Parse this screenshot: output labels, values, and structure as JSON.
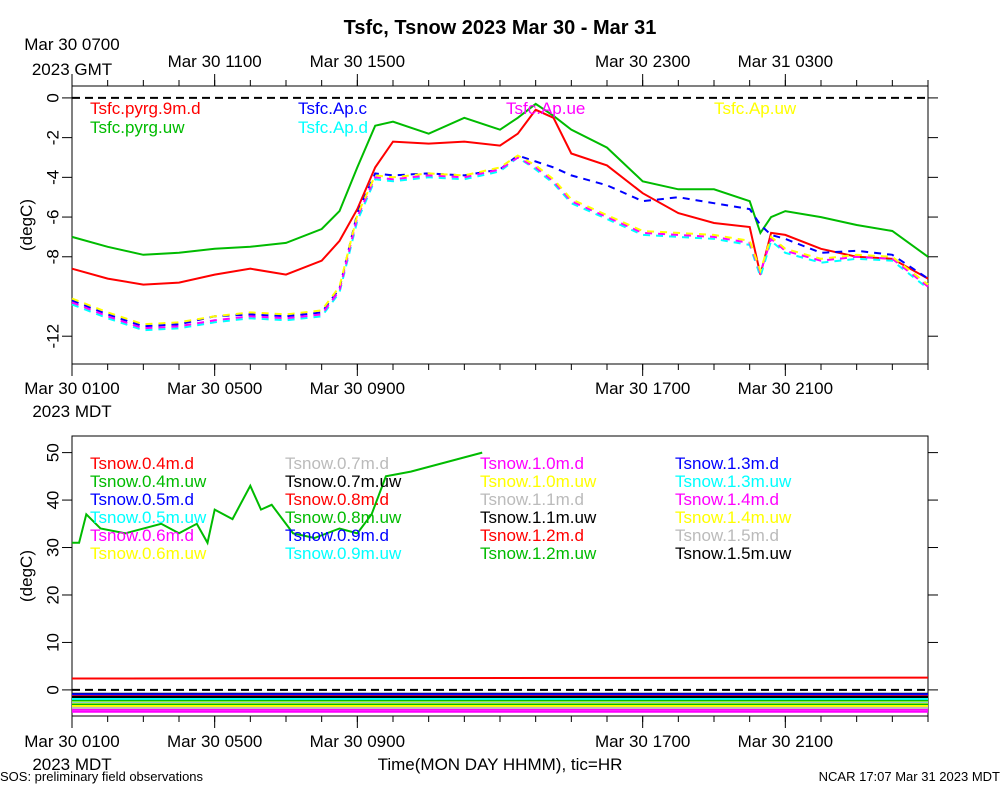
{
  "page": {
    "title": "Tsfc, Tsnow 2023 Mar 30 - Mar 31",
    "footer_left": "SOS: preliminary field observations",
    "footer_right": "NCAR 17:07 Mar 31 2023 MDT",
    "xlabel": "Time(MON DAY HHMM), tic=HR"
  },
  "top_axis": {
    "ticks": [
      {
        "label": "Mar 30 0700",
        "hour": 0
      },
      {
        "label": "Mar 30 1100",
        "hour": 4
      },
      {
        "label": "Mar 30 1500",
        "hour": 8
      },
      {
        "label": "Mar 30 2300",
        "hour": 16
      },
      {
        "label": "Mar 31 0300",
        "hour": 20
      }
    ],
    "first_tick_suffix": "2023 GMT"
  },
  "bottom_axis": {
    "ticks": [
      {
        "label": "Mar 30 0100",
        "hour": 0
      },
      {
        "label": "Mar 30 0500",
        "hour": 4
      },
      {
        "label": "Mar 30 0900",
        "hour": 8
      },
      {
        "label": "Mar 30 1700",
        "hour": 16
      },
      {
        "label": "Mar 30 2100",
        "hour": 20
      }
    ],
    "first_tick_suffix": "2023 MDT"
  },
  "chart_data": [
    {
      "type": "line",
      "title": "Tsfc, Tsnow 2023 Mar 30 - Mar 31",
      "ylabel": "(degC)",
      "xlim": [
        0,
        24
      ],
      "ylim": [
        -13.4,
        0.6
      ],
      "yticks": [
        0,
        -2,
        -4,
        -6,
        -8,
        -12
      ],
      "reference_line": {
        "y": 0,
        "style": "dashed",
        "color": "#000000"
      },
      "x_hours_mdt": [
        0,
        1,
        2,
        3,
        4,
        5,
        6,
        7,
        7.5,
        8,
        8.5,
        9,
        10,
        11,
        12,
        12.5,
        13,
        13.5,
        14,
        15,
        16,
        17,
        18,
        19,
        19.3,
        19.6,
        20,
        21,
        22,
        23,
        24
      ],
      "series": [
        {
          "name": "Tsfc.pyrg.9m.d",
          "color": "#ff0000",
          "style": "solid",
          "values": [
            -8.6,
            -9.1,
            -9.4,
            -9.3,
            -8.9,
            -8.6,
            -8.9,
            -8.2,
            -7.2,
            -5.6,
            -3.5,
            -2.2,
            -2.3,
            -2.2,
            -2.4,
            -1.8,
            -0.6,
            -1.0,
            -2.8,
            -3.4,
            -4.8,
            -5.8,
            -6.3,
            -6.5,
            -8.9,
            -6.8,
            -6.9,
            -7.6,
            -8.0,
            -8.1,
            -9.1
          ]
        },
        {
          "name": "Tsfc.pyrg.uw",
          "color": "#00bb00",
          "style": "solid",
          "values": [
            -7.0,
            -7.5,
            -7.9,
            -7.8,
            -7.6,
            -7.5,
            -7.3,
            -6.6,
            -5.7,
            -3.5,
            -1.4,
            -1.2,
            -1.8,
            -1.0,
            -1.6,
            -1.0,
            -0.3,
            -0.9,
            -1.6,
            -2.5,
            -4.2,
            -4.6,
            -4.6,
            -5.2,
            -6.8,
            -6.0,
            -5.7,
            -6.0,
            -6.4,
            -6.7,
            -8.0
          ]
        },
        {
          "name": "Tsfc.Ap.c",
          "color": "#0000ff",
          "style": "dashed",
          "values": [
            -10.2,
            -10.9,
            -11.5,
            -11.4,
            -11.0,
            -10.9,
            -11.0,
            -10.8,
            -9.6,
            -5.8,
            -3.8,
            -3.9,
            -3.8,
            -3.9,
            -3.6,
            -2.9,
            -3.2,
            -3.5,
            -3.9,
            -4.4,
            -5.2,
            -5.0,
            -5.3,
            -5.6,
            -6.4,
            -6.9,
            -7.1,
            -7.8,
            -7.7,
            -7.9,
            -9.1
          ]
        },
        {
          "name": "Tsfc.Ap.d",
          "color": "#00ffff",
          "style": "dashed",
          "values": [
            -10.4,
            -11.1,
            -11.7,
            -11.6,
            -11.3,
            -11.1,
            -11.2,
            -11.0,
            -9.8,
            -6.2,
            -4.1,
            -4.2,
            -4.0,
            -4.1,
            -3.7,
            -3.0,
            -3.6,
            -4.3,
            -5.3,
            -6.1,
            -6.9,
            -7.0,
            -7.1,
            -7.4,
            -9.0,
            -7.2,
            -7.8,
            -8.3,
            -8.1,
            -8.2,
            -9.6
          ]
        },
        {
          "name": "Tsfc.Ap.ue",
          "color": "#ff00ff",
          "style": "dashed",
          "values": [
            -10.3,
            -11.0,
            -11.6,
            -11.5,
            -11.2,
            -11.0,
            -11.1,
            -10.9,
            -9.7,
            -6.0,
            -4.0,
            -4.1,
            -3.9,
            -4.0,
            -3.6,
            -3.0,
            -3.5,
            -4.2,
            -5.2,
            -6.0,
            -6.8,
            -6.9,
            -7.0,
            -7.3,
            -8.8,
            -7.1,
            -7.7,
            -8.2,
            -8.0,
            -8.1,
            -9.5
          ]
        },
        {
          "name": "Tsfc.Ap.uw",
          "color": "#ffff00",
          "style": "dashed",
          "values": [
            -10.1,
            -10.8,
            -11.4,
            -11.3,
            -11.0,
            -10.8,
            -10.9,
            -10.7,
            -9.5,
            -5.9,
            -3.9,
            -4.0,
            -3.8,
            -3.9,
            -3.5,
            -2.9,
            -3.4,
            -4.1,
            -5.1,
            -5.9,
            -6.7,
            -6.8,
            -6.9,
            -7.2,
            -8.7,
            -7.0,
            -7.6,
            -8.1,
            -7.9,
            -8.0,
            -9.4
          ]
        }
      ]
    },
    {
      "type": "line",
      "ylabel": "(degC)",
      "xlim": [
        0,
        24
      ],
      "ylim": [
        -5.5,
        53.5
      ],
      "yticks": [
        0,
        10,
        20,
        30,
        40,
        50
      ],
      "reference_line": {
        "y": 0,
        "style": "dashed",
        "color": "#000000"
      },
      "series": [
        {
          "name": "Tsnow.0.4m.d",
          "color": "#ff0000",
          "x": [
            0,
            24
          ],
          "values": [
            2.4,
            2.6
          ]
        },
        {
          "name": "Tsnow.0.4m.uw",
          "color": "#00bb00",
          "x": [
            0,
            0.2,
            0.4,
            0.8,
            1.5,
            2.5,
            3.0,
            3.5,
            3.8,
            4.0,
            4.5,
            5.0,
            5.3,
            5.6,
            6.2,
            6.8,
            7.5,
            8.0,
            8.4,
            8.8,
            9.5,
            10.5,
            11.0,
            11.5
          ],
          "values": [
            31,
            31,
            37,
            34,
            33,
            35,
            33,
            35,
            31,
            38,
            36,
            43,
            38,
            39,
            33,
            32,
            34,
            33,
            37,
            45,
            46,
            48,
            49,
            50
          ]
        },
        {
          "name": "Tsnow.0.5m.d",
          "color": "#0000ff",
          "x": [
            0,
            24
          ],
          "values": [
            -1.6,
            -1.6
          ]
        },
        {
          "name": "Tsnow.0.5m.uw",
          "color": "#00ffff",
          "x": [
            0,
            24
          ],
          "values": [
            -2.6,
            -2.6
          ]
        },
        {
          "name": "Tsnow.0.6m.d",
          "color": "#ff00ff",
          "x": [
            0,
            24
          ],
          "values": [
            -3.6,
            -3.6
          ]
        },
        {
          "name": "Tsnow.0.6m.uw",
          "color": "#ffff00",
          "x": [
            0,
            24
          ],
          "values": [
            -2.3,
            -2.3
          ]
        },
        {
          "name": "Tsnow.0.7m.d",
          "color": "#bbbbbb",
          "x": [
            0,
            24
          ],
          "values": [
            -2.8,
            -2.8
          ]
        },
        {
          "name": "Tsnow.0.7m.uw",
          "color": "#000000",
          "x": [
            0,
            24
          ],
          "values": [
            -1.2,
            -1.2
          ]
        },
        {
          "name": "Tsnow.0.8m.d",
          "color": "#ff0000",
          "x": [
            0,
            24
          ],
          "values": [
            -2.0,
            -2.0
          ]
        },
        {
          "name": "Tsnow.0.8m.uw",
          "color": "#00bb00",
          "x": [
            0,
            24
          ],
          "values": [
            -2.2,
            -2.2
          ]
        },
        {
          "name": "Tsnow.0.9m.d",
          "color": "#0000ff",
          "x": [
            0,
            24
          ],
          "values": [
            -1.4,
            -1.4
          ]
        },
        {
          "name": "Tsnow.0.9m.uw",
          "color": "#00ffff",
          "x": [
            0,
            24
          ],
          "values": [
            -1.9,
            -1.9
          ]
        },
        {
          "name": "Tsnow.1.0m.d",
          "color": "#ff00ff",
          "x": [
            0,
            24
          ],
          "values": [
            -4.2,
            -4.2
          ]
        },
        {
          "name": "Tsnow.1.0m.uw",
          "color": "#ffff00",
          "x": [
            0,
            24
          ],
          "values": [
            -3.0,
            -3.0
          ]
        },
        {
          "name": "Tsnow.1.1m.d",
          "color": "#bbbbbb",
          "x": [
            0,
            24
          ],
          "values": [
            -3.3,
            -3.3
          ]
        },
        {
          "name": "Tsnow.1.1m.uw",
          "color": "#000000",
          "x": [
            0,
            24
          ],
          "values": [
            -0.8,
            -0.8
          ]
        },
        {
          "name": "Tsnow.1.2m.d",
          "color": "#ff0000",
          "x": [
            0,
            24
          ],
          "values": [
            -1.1,
            -1.1
          ]
        },
        {
          "name": "Tsnow.1.2m.uw",
          "color": "#00bb00",
          "x": [
            0,
            24
          ],
          "values": [
            -3.1,
            -3.1
          ]
        },
        {
          "name": "Tsnow.1.3m.d",
          "color": "#0000ff",
          "x": [
            0,
            24
          ],
          "values": [
            -0.9,
            -0.9
          ]
        },
        {
          "name": "Tsnow.1.3m.uw",
          "color": "#00ffff",
          "x": [
            0,
            24
          ],
          "values": [
            -1.7,
            -1.7
          ]
        },
        {
          "name": "Tsnow.1.4m.d",
          "color": "#ff00ff",
          "x": [
            0,
            24
          ],
          "values": [
            -4.6,
            -4.6
          ]
        },
        {
          "name": "Tsnow.1.4m.uw",
          "color": "#ffff00",
          "x": [
            0,
            24
          ],
          "values": [
            -3.4,
            -3.4
          ]
        },
        {
          "name": "Tsnow.1.5m.d",
          "color": "#bbbbbb",
          "x": [
            0,
            24
          ],
          "values": [
            -3.8,
            -3.8
          ]
        },
        {
          "name": "Tsnow.1.5m.uw",
          "color": "#000000",
          "x": [
            0,
            24
          ],
          "values": [
            -1.5,
            -1.5
          ]
        }
      ]
    }
  ]
}
